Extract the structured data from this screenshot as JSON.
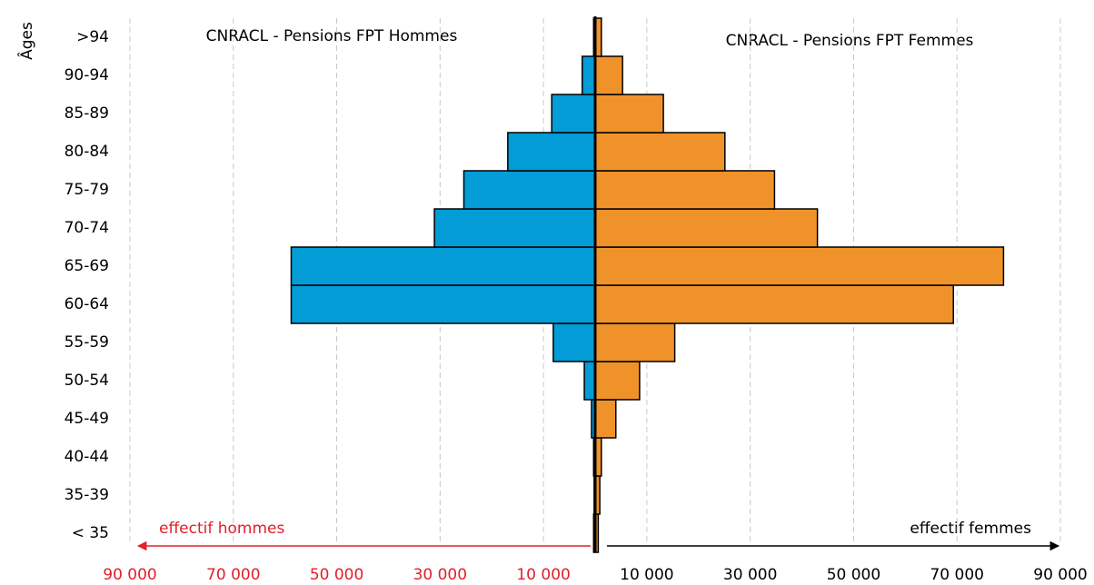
{
  "chart_data": {
    "type": "pyramid",
    "y_label": "Âges",
    "categories": [
      "< 35",
      "35-39",
      "40-44",
      "45-49",
      "50-54",
      "55-59",
      "60-64",
      "65-69",
      "70-74",
      "75-79",
      "80-84",
      "85-89",
      "90-94",
      ">94"
    ],
    "series": [
      {
        "name": "CNRACL - Pensions FPT Hommes",
        "color": "#039cd6",
        "side": "left",
        "values": [
          300,
          200,
          300,
          700,
          2100,
          8100,
          58800,
          58800,
          31100,
          25400,
          16900,
          8400,
          2500,
          300
        ]
      },
      {
        "name": "CNRACL - Pensions FPT Femmes",
        "color": "#f0922a",
        "side": "right",
        "values": [
          600,
          900,
          1200,
          4000,
          8600,
          15400,
          69300,
          79000,
          43000,
          34700,
          25100,
          13200,
          5300,
          1200
        ]
      }
    ],
    "left_axis_label": "effectif  hommes",
    "right_axis_label": "effectif femmes",
    "xlim": [
      -90000,
      90000
    ],
    "xticks": [
      {
        "value": -90000,
        "label": "90 000"
      },
      {
        "value": -70000,
        "label": "70 000"
      },
      {
        "value": -50000,
        "label": "50 000"
      },
      {
        "value": -30000,
        "label": "30 000"
      },
      {
        "value": -10000,
        "label": "10 000"
      },
      {
        "value": 10000,
        "label": "10 000"
      },
      {
        "value": 30000,
        "label": "30 000"
      },
      {
        "value": 50000,
        "label": "50 000"
      },
      {
        "value": 70000,
        "label": "70 000"
      },
      {
        "value": 90000,
        "label": "90 000"
      }
    ],
    "left_tick_color": "#e0202a",
    "grid": true
  }
}
